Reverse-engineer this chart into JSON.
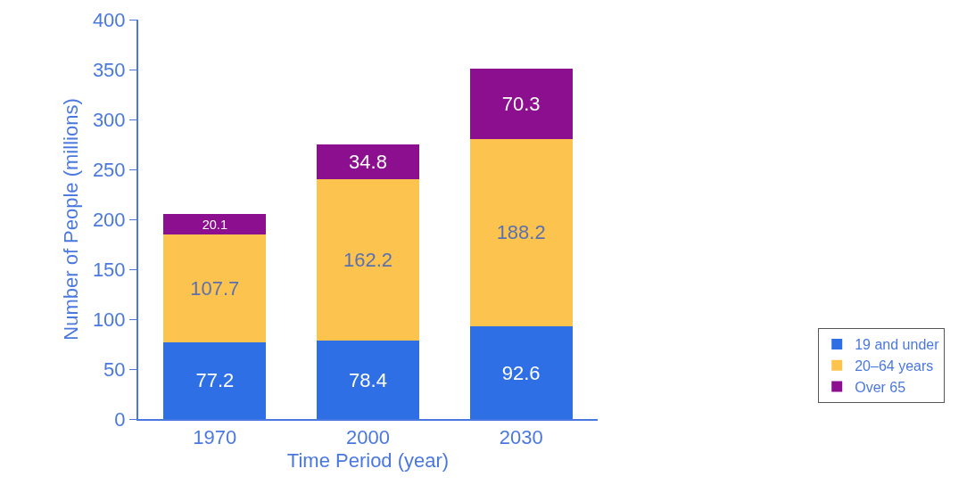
{
  "chart_data": {
    "type": "bar",
    "stacked": true,
    "xlabel": "Time Period (year)",
    "ylabel": "Number of People (millions)",
    "categories": [
      "1970",
      "2000",
      "2030"
    ],
    "series": [
      {
        "name": "19 and under",
        "color": "#2f6fe6",
        "values": [
          77.2,
          78.4,
          92.6
        ]
      },
      {
        "name": "20–64 years",
        "color": "#fcc44e",
        "values": [
          107.7,
          162.2,
          188.2
        ]
      },
      {
        "name": "Over 65",
        "color": "#8b0f8f",
        "values": [
          20.1,
          34.8,
          70.3
        ]
      }
    ],
    "ylim": [
      0,
      400
    ],
    "yticks": [
      0,
      50,
      100,
      150,
      200,
      250,
      300,
      350,
      400
    ],
    "grid": false,
    "legend": "bottom right",
    "data_labels": true
  }
}
